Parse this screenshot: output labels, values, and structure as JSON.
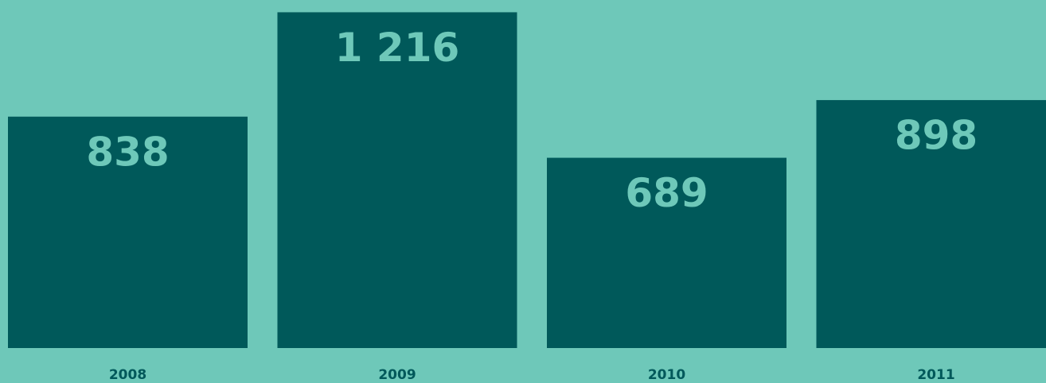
{
  "chart_data": {
    "type": "bar",
    "categories": [
      "2008",
      "2009",
      "2010",
      "2011"
    ],
    "values": [
      838,
      1216,
      689,
      898
    ],
    "value_labels": [
      "838",
      "1 216",
      "689",
      "898"
    ],
    "color": "#00595a"
  }
}
